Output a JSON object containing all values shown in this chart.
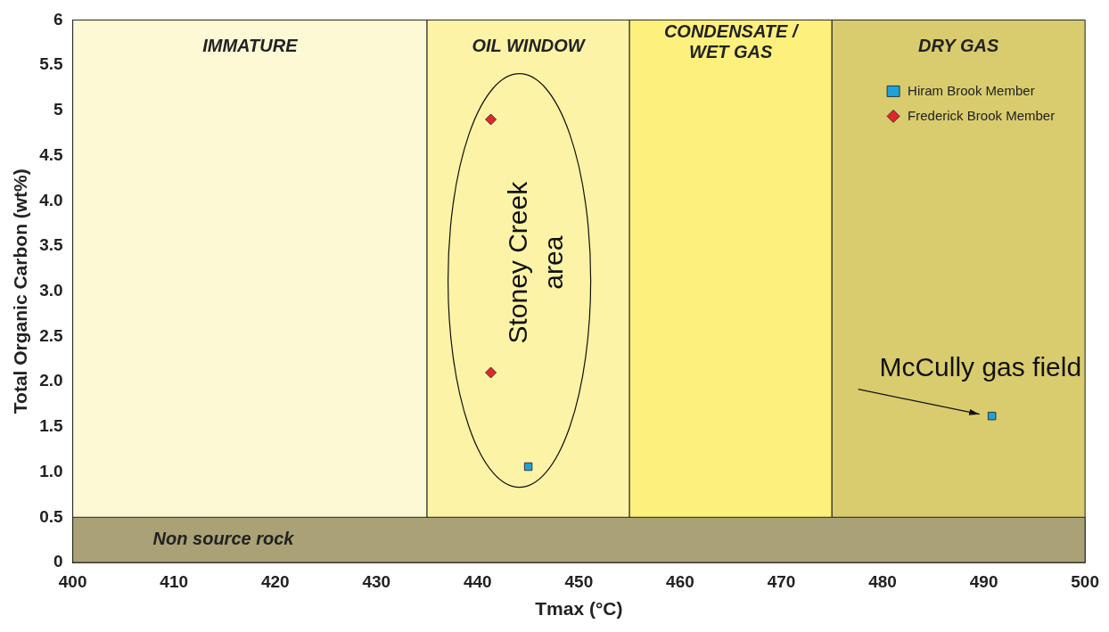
{
  "chart_data": {
    "type": "scatter",
    "xlabel": "Tmax (°C)",
    "ylabel": "Total Organic Carbon (wt%)",
    "xlim": [
      400,
      500
    ],
    "xticks": [
      400,
      410,
      420,
      430,
      440,
      450,
      460,
      470,
      480,
      490,
      500
    ],
    "ylim": [
      0,
      6
    ],
    "yticks": [
      0,
      0.5,
      {
        "value": 1,
        "label": "1.0"
      },
      1.5,
      {
        "value": 2,
        "label": "2.0"
      },
      2.5,
      {
        "value": 3,
        "label": "3.0"
      },
      3.5,
      {
        "value": 4,
        "label": "4.0"
      },
      4.5,
      5,
      5.5,
      6
    ],
    "grid": false,
    "legend": "top right",
    "series": [
      {
        "name": "Hiram Brook Member",
        "color": "#1ba3dc",
        "marker": "square",
        "x": [
          445,
          490.8
        ],
        "values": [
          1.06,
          1.62
        ]
      },
      {
        "name": "Frederick Brook Member",
        "color": "#e3262b",
        "marker": "diamond",
        "x": [
          441.3,
          441.3
        ],
        "values": [
          4.9,
          2.1
        ]
      }
    ],
    "bands": [
      {
        "axis": "x",
        "from": 400,
        "to": 435,
        "label": "IMMATURE",
        "color": "#fdf9d5"
      },
      {
        "axis": "x",
        "from": 435,
        "to": 455,
        "label": "OIL WINDOW",
        "color": "#fdf3a6"
      },
      {
        "axis": "x",
        "from": 455,
        "to": 475,
        "label": "CONDENSATE /\nWET GAS",
        "color": "#fdf07c"
      },
      {
        "axis": "x",
        "from": 475,
        "to": 500,
        "label": "DRY GAS",
        "color": "#d9cc6e"
      },
      {
        "axis": "y",
        "from": 0,
        "to": 0.5,
        "label": "Non source rock",
        "color": "#aaa276"
      }
    ],
    "annotations": [
      "Stoney Creek area",
      {
        "text": "McCully gas field",
        "x": 490.8,
        "y": 1.62
      }
    ]
  }
}
